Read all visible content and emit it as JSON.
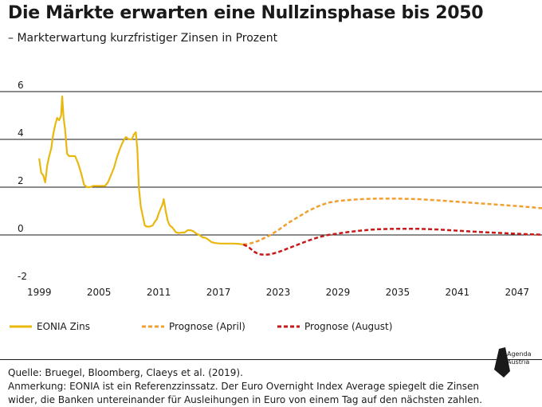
{
  "header": {
    "title": "Die Märkte erwarten eine Nullzinsphase bis 2050",
    "subtitle": "– Markterwartung kurzfristiger Zinsen in Prozent"
  },
  "footer": {
    "source": "Quelle: Bruegel, Bloomberg, Claeys et al. (2019).",
    "note_line1": "Anmerkung: EONIA ist ein Referenzzinssatz. Der Euro Overnight Index Average spiegelt die Zinsen",
    "note_line2": "wider, die Banken untereinander für Ausleihungen in Euro von einem Tag auf den nächsten zahlen.",
    "logo_line1": "Agenda",
    "logo_line2": "Austria"
  },
  "colors": {
    "eonia": "#e8b80f",
    "april": "#f0a030",
    "august": "#c81818",
    "gridline": "#1a1a1a"
  },
  "chart_data": {
    "type": "line",
    "title": "Die Märkte erwarten eine Nullzinsphase bis 2050",
    "subtitle": "– Markterwartung kurzfristiger Zinsen in Prozent",
    "xlabel": "",
    "ylabel": "",
    "xlim": [
      1998.9,
      2049.5
    ],
    "ylim": [
      -2,
      6.5
    ],
    "x_ticks": [
      1999,
      2005,
      2011,
      2017,
      2023,
      2029,
      2035,
      2041,
      2047
    ],
    "y_ticks": [
      -2,
      0,
      2,
      4,
      6
    ],
    "grid": "horizontal",
    "legend_position": "bottom",
    "series": [
      {
        "name": "EONIA Zins",
        "style": "solid",
        "color": "#e8b80f",
        "points": [
          [
            1999.0,
            3.2
          ],
          [
            1999.2,
            2.6
          ],
          [
            1999.4,
            2.5
          ],
          [
            1999.6,
            2.2
          ],
          [
            1999.8,
            2.9
          ],
          [
            2000.0,
            3.3
          ],
          [
            2000.2,
            3.6
          ],
          [
            2000.4,
            4.2
          ],
          [
            2000.6,
            4.6
          ],
          [
            2000.8,
            4.9
          ],
          [
            2001.0,
            4.8
          ],
          [
            2001.2,
            5.0
          ],
          [
            2001.3,
            5.8
          ],
          [
            2001.45,
            4.9
          ],
          [
            2001.6,
            4.4
          ],
          [
            2001.8,
            3.4
          ],
          [
            2002.0,
            3.3
          ],
          [
            2002.3,
            3.3
          ],
          [
            2002.6,
            3.3
          ],
          [
            2002.9,
            3.0
          ],
          [
            2003.2,
            2.6
          ],
          [
            2003.5,
            2.1
          ],
          [
            2003.8,
            2.0
          ],
          [
            2004.1,
            2.0
          ],
          [
            2004.4,
            2.05
          ],
          [
            2004.7,
            2.05
          ],
          [
            2005.0,
            2.05
          ],
          [
            2005.3,
            2.05
          ],
          [
            2005.6,
            2.05
          ],
          [
            2005.9,
            2.2
          ],
          [
            2006.2,
            2.5
          ],
          [
            2006.5,
            2.8
          ],
          [
            2006.8,
            3.25
          ],
          [
            2007.1,
            3.6
          ],
          [
            2007.4,
            3.9
          ],
          [
            2007.7,
            4.1
          ],
          [
            2008.0,
            4.0
          ],
          [
            2008.3,
            4.0
          ],
          [
            2008.5,
            4.2
          ],
          [
            2008.7,
            4.3
          ],
          [
            2008.85,
            3.6
          ],
          [
            2009.0,
            2.0
          ],
          [
            2009.2,
            1.2
          ],
          [
            2009.4,
            0.8
          ],
          [
            2009.6,
            0.4
          ],
          [
            2009.8,
            0.35
          ],
          [
            2010.1,
            0.35
          ],
          [
            2010.4,
            0.4
          ],
          [
            2010.6,
            0.55
          ],
          [
            2010.8,
            0.65
          ],
          [
            2011.0,
            0.9
          ],
          [
            2011.2,
            1.1
          ],
          [
            2011.4,
            1.3
          ],
          [
            2011.5,
            1.5
          ],
          [
            2011.7,
            1.0
          ],
          [
            2011.9,
            0.6
          ],
          [
            2012.1,
            0.4
          ],
          [
            2012.4,
            0.3
          ],
          [
            2012.7,
            0.12
          ],
          [
            2013.0,
            0.08
          ],
          [
            2013.3,
            0.1
          ],
          [
            2013.6,
            0.1
          ],
          [
            2013.9,
            0.2
          ],
          [
            2014.2,
            0.2
          ],
          [
            2014.5,
            0.15
          ],
          [
            2014.8,
            0.05
          ],
          [
            2015.1,
            0.0
          ],
          [
            2015.4,
            -0.1
          ],
          [
            2015.7,
            -0.12
          ],
          [
            2016.0,
            -0.2
          ],
          [
            2016.3,
            -0.3
          ],
          [
            2016.7,
            -0.34
          ],
          [
            2017.2,
            -0.36
          ],
          [
            2017.8,
            -0.36
          ],
          [
            2018.4,
            -0.36
          ],
          [
            2019.0,
            -0.37
          ],
          [
            2019.5,
            -0.4
          ]
        ]
      },
      {
        "name": "Prognose (April)",
        "style": "dashed",
        "color": "#f0a030",
        "points": [
          [
            2019.5,
            -0.4
          ],
          [
            2020.0,
            -0.38
          ],
          [
            2021.0,
            -0.25
          ],
          [
            2022.0,
            -0.05
          ],
          [
            2023.0,
            0.2
          ],
          [
            2024.0,
            0.5
          ],
          [
            2025.0,
            0.75
          ],
          [
            2026.0,
            1.0
          ],
          [
            2027.0,
            1.2
          ],
          [
            2028.0,
            1.35
          ],
          [
            2029.0,
            1.42
          ],
          [
            2030.0,
            1.46
          ],
          [
            2031.0,
            1.49
          ],
          [
            2032.0,
            1.51
          ],
          [
            2033.0,
            1.52
          ],
          [
            2035.0,
            1.52
          ],
          [
            2037.0,
            1.5
          ],
          [
            2039.0,
            1.45
          ],
          [
            2041.0,
            1.39
          ],
          [
            2043.0,
            1.33
          ],
          [
            2045.0,
            1.27
          ],
          [
            2047.0,
            1.21
          ],
          [
            2049.5,
            1.12
          ]
        ]
      },
      {
        "name": "Prognose (August)",
        "style": "dashed",
        "color": "#c81818",
        "points": [
          [
            2019.5,
            -0.4
          ],
          [
            2020.0,
            -0.5
          ],
          [
            2020.6,
            -0.7
          ],
          [
            2021.0,
            -0.8
          ],
          [
            2021.6,
            -0.83
          ],
          [
            2022.2,
            -0.81
          ],
          [
            2023.0,
            -0.72
          ],
          [
            2024.0,
            -0.56
          ],
          [
            2025.0,
            -0.4
          ],
          [
            2026.0,
            -0.24
          ],
          [
            2027.0,
            -0.1
          ],
          [
            2028.0,
            0.0
          ],
          [
            2029.0,
            0.06
          ],
          [
            2030.0,
            0.12
          ],
          [
            2031.0,
            0.17
          ],
          [
            2032.0,
            0.21
          ],
          [
            2033.0,
            0.24
          ],
          [
            2035.0,
            0.26
          ],
          [
            2037.0,
            0.26
          ],
          [
            2039.0,
            0.23
          ],
          [
            2041.0,
            0.18
          ],
          [
            2043.0,
            0.13
          ],
          [
            2045.0,
            0.09
          ],
          [
            2047.0,
            0.05
          ],
          [
            2049.5,
            0.01
          ]
        ]
      }
    ]
  }
}
